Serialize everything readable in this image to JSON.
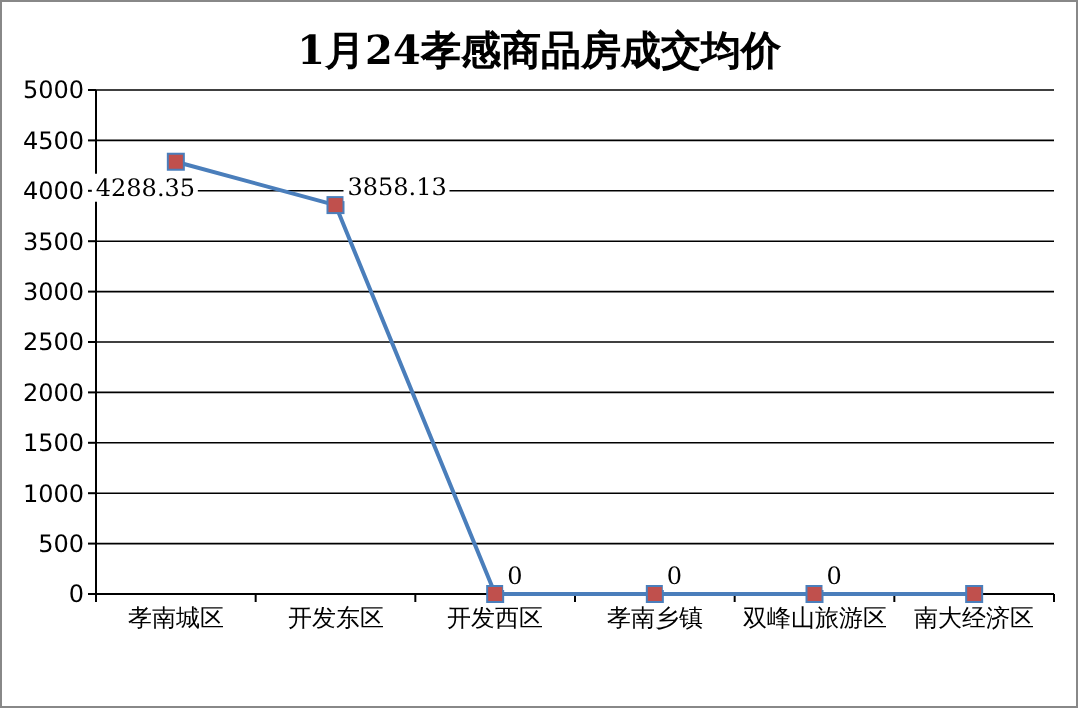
{
  "chart_data": {
    "type": "line",
    "title": "1月24孝感商品房成交均价",
    "categories": [
      "孝南城区",
      "开发东区",
      "开发西区",
      "孝南乡镇",
      "双峰山旅游区",
      "南大经济区"
    ],
    "series": [
      {
        "color": "#4a7ebb",
        "values": [
          4288.35,
          3858.13,
          0,
          0,
          0,
          0
        ]
      }
    ],
    "value_labels": [
      "4288.35",
      "3858.13",
      "0",
      "0",
      "0",
      null
    ],
    "ylim": [
      0,
      5000
    ],
    "yticks": [
      0,
      500,
      1000,
      1500,
      2000,
      2500,
      3000,
      3500,
      4000,
      4500,
      5000
    ],
    "grid": "y",
    "marker": "square",
    "line_style": "solid"
  }
}
